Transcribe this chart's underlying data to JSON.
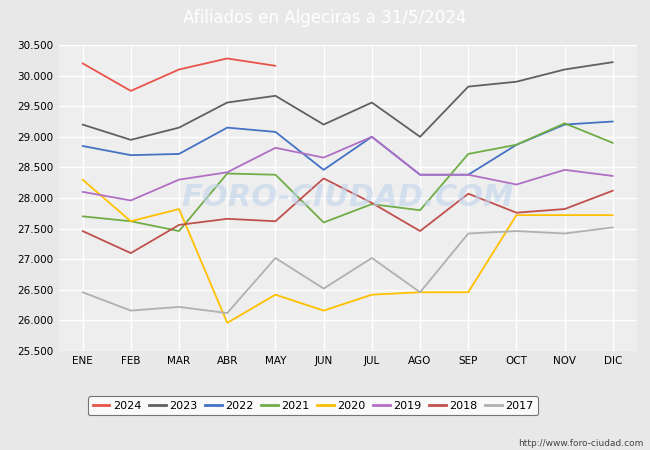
{
  "title": "Afiliados en Algeciras a 31/5/2024",
  "title_bgcolor": "#4a86c8",
  "title_color": "white",
  "ylim": [
    25500,
    30500
  ],
  "yticks": [
    25500,
    26000,
    26500,
    27000,
    27500,
    28000,
    28500,
    29000,
    29500,
    30000,
    30500
  ],
  "months": [
    "ENE",
    "FEB",
    "MAR",
    "ABR",
    "MAY",
    "JUN",
    "JUL",
    "AGO",
    "SEP",
    "OCT",
    "NOV",
    "DIC"
  ],
  "series": {
    "2024": {
      "color": "#e8534a",
      "data": [
        30200,
        29750,
        30100,
        30280,
        30160,
        null,
        null,
        null,
        null,
        null,
        null,
        null
      ]
    },
    "2023": {
      "color": "#606060",
      "data": [
        29200,
        28950,
        29150,
        29560,
        29670,
        29200,
        29560,
        29000,
        29820,
        29900,
        30100,
        30220
      ]
    },
    "2022": {
      "color": "#4472c4",
      "data": [
        28850,
        28700,
        28720,
        29150,
        29080,
        28460,
        29000,
        28380,
        28380,
        28870,
        29200,
        29250
      ]
    },
    "2021": {
      "color": "#70ad47",
      "data": [
        27700,
        27620,
        27460,
        28400,
        28380,
        27600,
        27900,
        27800,
        28720,
        28870,
        29220,
        28900
      ]
    },
    "2020": {
      "color": "#ffc000",
      "data": [
        28300,
        27620,
        27820,
        25960,
        26420,
        26160,
        26420,
        26460,
        26460,
        27720,
        27720,
        27720
      ]
    },
    "2019": {
      "color": "#b06fc4",
      "data": [
        28100,
        27960,
        28300,
        28420,
        28820,
        28660,
        29000,
        28380,
        28380,
        28220,
        28460,
        28360
      ]
    },
    "2018": {
      "color": "#c0504d",
      "data": [
        27460,
        27100,
        27560,
        27660,
        27620,
        28320,
        27920,
        27460,
        28070,
        27760,
        27820,
        28120
      ]
    },
    "2017": {
      "color": "#b0b0b0",
      "data": [
        26460,
        26160,
        26220,
        26120,
        27020,
        26520,
        27020,
        26460,
        27420,
        27460,
        27420,
        27520
      ]
    }
  },
  "watermark": "FORO-CIUDAD.COM",
  "website": "http://www.foro-ciudad.com",
  "background_color": "#e8e8e8",
  "plot_background": "#eeeeee",
  "grid_color": "white",
  "title_fontsize": 12,
  "tick_fontsize": 7.5,
  "legend_fontsize": 8
}
